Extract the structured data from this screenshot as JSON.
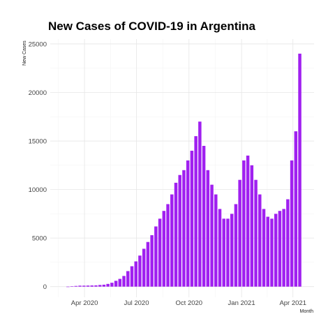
{
  "chart_data": {
    "type": "bar",
    "title": "New Cases of COVID-19 in Argentina",
    "xlabel": "Month",
    "ylabel": "New Cases",
    "x_range": [
      "2020-02-01",
      "2021-05-08"
    ],
    "ylim": [
      -1100,
      25500
    ],
    "y_ticks": [
      0,
      5000,
      10000,
      15000,
      20000,
      25000
    ],
    "x_ticks": [
      {
        "date": "2020-04-01",
        "label": "Apr 2020"
      },
      {
        "date": "2020-07-01",
        "label": "Jul 2020"
      },
      {
        "date": "2020-10-01",
        "label": "Oct 2020"
      },
      {
        "date": "2021-01-01",
        "label": "Jan 2021"
      },
      {
        "date": "2021-04-01",
        "label": "Apr 2021"
      }
    ],
    "grid": true,
    "bar_color": "#a020f0",
    "series": [
      {
        "dates": [
          "2020-03-03",
          "2020-03-10",
          "2020-03-17",
          "2020-03-24",
          "2020-03-31",
          "2020-04-07",
          "2020-04-14",
          "2020-04-21",
          "2020-04-28",
          "2020-05-05",
          "2020-05-12",
          "2020-05-19",
          "2020-05-26",
          "2020-06-02",
          "2020-06-09",
          "2020-06-16",
          "2020-06-23",
          "2020-06-30",
          "2020-07-07",
          "2020-07-14",
          "2020-07-21",
          "2020-07-28",
          "2020-08-04",
          "2020-08-11",
          "2020-08-18",
          "2020-08-25",
          "2020-09-01",
          "2020-09-08",
          "2020-09-15",
          "2020-09-22",
          "2020-09-29",
          "2020-10-06",
          "2020-10-13",
          "2020-10-20",
          "2020-10-27",
          "2020-11-03",
          "2020-11-10",
          "2020-11-17",
          "2020-11-24",
          "2020-12-01",
          "2020-12-08",
          "2020-12-15",
          "2020-12-22",
          "2020-12-29",
          "2021-01-05",
          "2021-01-12",
          "2021-01-19",
          "2021-01-26",
          "2021-02-02",
          "2021-02-09",
          "2021-02-16",
          "2021-02-23",
          "2021-03-02",
          "2021-03-09",
          "2021-03-16",
          "2021-03-23",
          "2021-03-30",
          "2021-04-06",
          "2021-04-13"
        ],
        "values": [
          1,
          30,
          70,
          100,
          100,
          110,
          120,
          130,
          170,
          200,
          280,
          400,
          600,
          800,
          1100,
          1600,
          2100,
          2600,
          3200,
          3900,
          4600,
          5300,
          6200,
          7000,
          7800,
          8500,
          9500,
          10700,
          11500,
          12000,
          13000,
          14000,
          15500,
          17000,
          14500,
          12000,
          10500,
          9500,
          8000,
          7000,
          7000,
          7500,
          8500,
          11000,
          13000,
          13500,
          12500,
          11000,
          9500,
          8000,
          7200,
          7000,
          7500,
          7800,
          8000,
          9000,
          13000,
          16000,
          24000
        ]
      }
    ]
  }
}
